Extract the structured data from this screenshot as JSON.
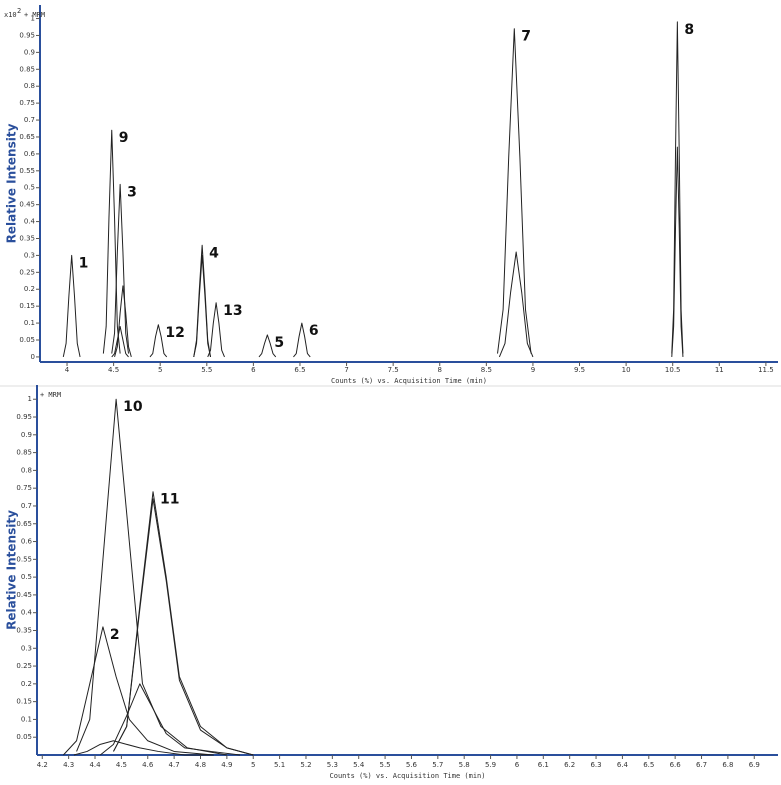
{
  "chart_data": [
    {
      "type": "line",
      "y_multiplier": "x10",
      "y_multiplier_exp": "2",
      "mode_label": "+ MRM",
      "y_label": "Relative Intensity",
      "x_label": "Counts (%) vs. Acquisition Time (min)",
      "xlim": [
        3.71,
        11.63
      ],
      "ylim": [
        -0.015,
        1.04
      ],
      "xticks": [
        4,
        4.5,
        5,
        5.5,
        6,
        6.5,
        7,
        7.5,
        8,
        8.5,
        9,
        9.5,
        10,
        10.5,
        11,
        11.5
      ],
      "yticks": [
        0,
        0.05,
        0.1,
        0.15,
        0.2,
        0.25,
        0.3,
        0.35,
        0.4,
        0.45,
        0.5,
        0.55,
        0.6,
        0.65,
        0.7,
        0.75,
        0.8,
        0.85,
        0.9,
        0.95,
        1
      ],
      "series": [
        {
          "name": "1",
          "color": "#222",
          "x": [
            3.96,
            3.99,
            4.02,
            4.05,
            4.08,
            4.11,
            4.14
          ],
          "values": [
            0,
            0.04,
            0.18,
            0.3,
            0.18,
            0.04,
            0
          ]
        },
        {
          "name": "9",
          "color": "#222",
          "x": [
            4.39,
            4.42,
            4.45,
            4.48,
            4.51,
            4.54,
            4.57
          ],
          "values": [
            0.01,
            0.09,
            0.41,
            0.67,
            0.41,
            0.09,
            0.01
          ]
        },
        {
          "name": "3",
          "color": "#222",
          "x": [
            4.48,
            4.51,
            4.54,
            4.57,
            4.6,
            4.63,
            4.66
          ],
          "values": [
            0.01,
            0.07,
            0.31,
            0.51,
            0.31,
            0.07,
            0.01
          ]
        },
        {
          "color": "#222",
          "x": [
            4.51,
            4.54,
            4.57,
            4.6,
            4.63,
            4.66,
            4.69
          ],
          "values": [
            0,
            0.03,
            0.13,
            0.21,
            0.13,
            0.03,
            0
          ]
        },
        {
          "color": "#222",
          "x": [
            4.48,
            4.51,
            4.54,
            4.57,
            4.6,
            4.63,
            4.66
          ],
          "values": [
            0,
            0.01,
            0.05,
            0.09,
            0.05,
            0.01,
            0
          ]
        },
        {
          "name": "12",
          "color": "#222",
          "x": [
            4.89,
            4.92,
            4.95,
            4.98,
            5.01,
            5.04,
            5.07
          ],
          "values": [
            0,
            0.01,
            0.06,
            0.095,
            0.06,
            0.01,
            0
          ]
        },
        {
          "name": "4",
          "color": "#222",
          "x": [
            5.36,
            5.39,
            5.42,
            5.45,
            5.48,
            5.51,
            5.54
          ],
          "values": [
            0,
            0.05,
            0.2,
            0.33,
            0.2,
            0.05,
            0
          ]
        },
        {
          "color": "#222",
          "x": [
            5.36,
            5.39,
            5.42,
            5.45,
            5.48,
            5.51,
            5.54
          ],
          "values": [
            0,
            0.04,
            0.18,
            0.3,
            0.18,
            0.04,
            0
          ]
        },
        {
          "name": "13",
          "color": "#222",
          "x": [
            5.51,
            5.54,
            5.57,
            5.6,
            5.63,
            5.66,
            5.69
          ],
          "values": [
            0,
            0.02,
            0.1,
            0.16,
            0.1,
            0.02,
            0
          ]
        },
        {
          "name": "5",
          "color": "#222",
          "x": [
            6.06,
            6.09,
            6.12,
            6.15,
            6.18,
            6.21,
            6.24
          ],
          "values": [
            0,
            0.01,
            0.04,
            0.065,
            0.04,
            0.01,
            0
          ]
        },
        {
          "name": "6",
          "color": "#222",
          "x": [
            6.43,
            6.46,
            6.49,
            6.52,
            6.55,
            6.58,
            6.61
          ],
          "values": [
            0,
            0.01,
            0.06,
            0.1,
            0.06,
            0.01,
            0
          ]
        },
        {
          "name": "7",
          "color": "#222",
          "x": [
            8.62,
            8.68,
            8.74,
            8.8,
            8.86,
            8.92,
            8.98
          ],
          "values": [
            0.01,
            0.14,
            0.59,
            0.97,
            0.59,
            0.14,
            0.01
          ]
        },
        {
          "color": "#222",
          "x": [
            8.64,
            8.7,
            8.76,
            8.82,
            8.88,
            8.94,
            9.0
          ],
          "values": [
            0,
            0.04,
            0.19,
            0.31,
            0.19,
            0.04,
            0
          ]
        },
        {
          "name": "8",
          "color": "#222",
          "x": [
            10.49,
            10.51,
            10.53,
            10.55,
            10.57,
            10.59,
            10.61
          ],
          "values": [
            0.01,
            0.14,
            0.6,
            0.99,
            0.6,
            0.14,
            0.01
          ]
        },
        {
          "color": "#222",
          "x": [
            10.49,
            10.51,
            10.53,
            10.55,
            10.57,
            10.59,
            10.61
          ],
          "values": [
            0,
            0.09,
            0.38,
            0.62,
            0.38,
            0.09,
            0
          ]
        }
      ]
    },
    {
      "type": "line",
      "mode_label": "+ MRM",
      "y_label": "Relative Intensity",
      "x_label": "Counts (%) vs. Acquisition Time (min)",
      "xlim": [
        4.18,
        6.99
      ],
      "ylim": [
        0,
        1.04
      ],
      "xticks": [
        4.2,
        4.3,
        4.4,
        4.5,
        4.6,
        4.7,
        4.8,
        4.9,
        5,
        5.1,
        5.2,
        5.3,
        5.4,
        5.5,
        5.6,
        5.7,
        5.8,
        5.9,
        6,
        6.1,
        6.2,
        6.3,
        6.4,
        6.5,
        6.6,
        6.7,
        6.8,
        6.9
      ],
      "yticks": [
        0.05,
        0.1,
        0.15,
        0.2,
        0.25,
        0.3,
        0.35,
        0.4,
        0.45,
        0.5,
        0.55,
        0.6,
        0.65,
        0.7,
        0.75,
        0.8,
        0.85,
        0.9,
        0.95,
        1
      ],
      "series": [
        {
          "name": "10",
          "color": "#222",
          "x": [
            4.33,
            4.38,
            4.43,
            4.48,
            4.53,
            4.58,
            4.65,
            4.75,
            4.9
          ],
          "values": [
            0.01,
            0.1,
            0.55,
            1.0,
            0.6,
            0.2,
            0.08,
            0.02,
            0
          ]
        },
        {
          "name": "11",
          "color": "#222",
          "x": [
            4.47,
            4.52,
            4.57,
            4.62,
            4.67,
            4.72,
            4.8,
            4.9,
            5.0
          ],
          "values": [
            0.01,
            0.08,
            0.42,
            0.74,
            0.5,
            0.22,
            0.08,
            0.02,
            0
          ]
        },
        {
          "color": "#222",
          "x": [
            4.47,
            4.52,
            4.57,
            4.62,
            4.67,
            4.72,
            4.8,
            4.9,
            5.0
          ],
          "values": [
            0.01,
            0.08,
            0.41,
            0.72,
            0.49,
            0.21,
            0.07,
            0.02,
            0
          ]
        },
        {
          "name": "2",
          "color": "#222",
          "x": [
            4.28,
            4.33,
            4.38,
            4.43,
            4.48,
            4.53,
            4.6,
            4.7,
            4.85
          ],
          "values": [
            0,
            0.04,
            0.2,
            0.36,
            0.22,
            0.1,
            0.04,
            0.01,
            0
          ]
        },
        {
          "color": "#222",
          "x": [
            4.42,
            4.47,
            4.52,
            4.57,
            4.62,
            4.67,
            4.74,
            4.84,
            4.95
          ],
          "values": [
            0,
            0.03,
            0.11,
            0.2,
            0.13,
            0.06,
            0.02,
            0.01,
            0
          ]
        },
        {
          "color": "#222",
          "x": [
            4.32,
            4.37,
            4.42,
            4.47,
            4.52,
            4.57,
            4.64,
            4.74,
            4.85
          ],
          "values": [
            0,
            0.01,
            0.03,
            0.04,
            0.03,
            0.02,
            0.01,
            0,
            0
          ]
        }
      ]
    }
  ]
}
